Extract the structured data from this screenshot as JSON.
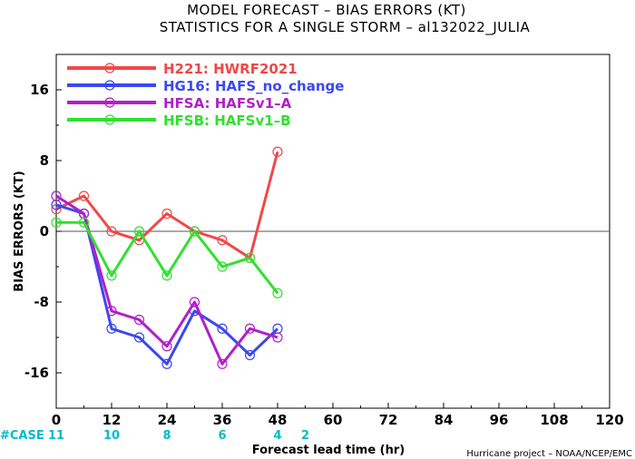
{
  "title_line1": "MODEL FORECAST – BIAS ERRORS (KT)",
  "title_line2": "STATISTICS FOR A SINGLE STORM – al132022_JULIA",
  "case_prefix": "#CASE",
  "footer": "Hurricane project – NOAA/NCEP/EMC",
  "chart_data": {
    "type": "line",
    "xlabel": "Forecast lead time (hr)",
    "ylabel": "BIAS ERRORS (KT)",
    "xlim": [
      0,
      120
    ],
    "ylim": [
      -20,
      20
    ],
    "xticks": [
      0,
      12,
      24,
      36,
      48,
      60,
      72,
      84,
      96,
      108,
      120
    ],
    "yticks": [
      -16,
      -8,
      0,
      8,
      16
    ],
    "zero_line": true,
    "legend_position": "top-left",
    "cases": [
      {
        "x": 0,
        "label": "11"
      },
      {
        "x": 12,
        "label": "10"
      },
      {
        "x": 24,
        "label": "8"
      },
      {
        "x": 36,
        "label": "6"
      },
      {
        "x": 48,
        "label": "4"
      },
      {
        "x": 54,
        "label": "2"
      }
    ],
    "series": [
      {
        "name": "H221: HWRF2021",
        "color": "#f04848",
        "x": [
          0,
          6,
          12,
          18,
          24,
          30,
          36,
          42,
          48
        ],
        "values": [
          2.5,
          4,
          0,
          -1,
          2,
          0,
          -1,
          -3,
          9
        ]
      },
      {
        "name": "HG16: HAFS_no_change",
        "color": "#3a48f0",
        "x": [
          0,
          6,
          12,
          18,
          24,
          30,
          36,
          42,
          48
        ],
        "values": [
          3,
          2,
          -11,
          -12,
          -15,
          -9,
          -11,
          -14,
          -11
        ]
      },
      {
        "name": "HFSA: HAFSv1–A",
        "color": "#b020c8",
        "x": [
          0,
          6,
          12,
          18,
          24,
          30,
          36,
          42,
          48
        ],
        "values": [
          4,
          2,
          -9,
          -10,
          -13,
          -8,
          -15,
          -11,
          -12
        ]
      },
      {
        "name": "HFSB: HAFSv1–B",
        "color": "#30e030",
        "x": [
          0,
          6,
          12,
          18,
          24,
          30,
          36,
          42,
          48
        ],
        "values": [
          1,
          1,
          -5,
          0,
          -5,
          0,
          -4,
          -3,
          -7
        ]
      }
    ]
  }
}
